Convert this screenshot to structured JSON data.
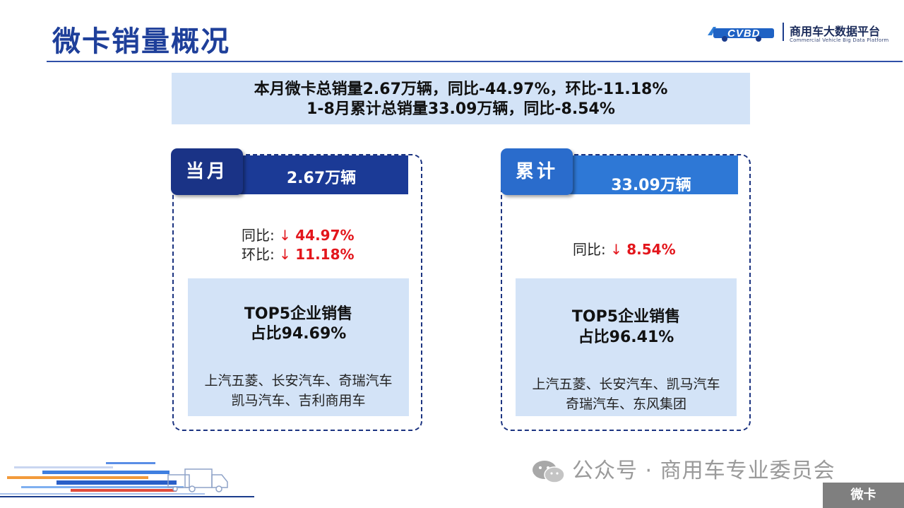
{
  "header": {
    "title": "微卡销量概况",
    "logo_cn": "商用车大数据平台",
    "logo_en": "Commercial Vehicle Big Data Platform",
    "logo_mark": "CVBD"
  },
  "summary": {
    "line1": "本月微卡总销量2.67万辆，同比-44.97%，环比-11.18%",
    "line2": "1-8月累计总销量33.09万辆，同比-8.54%"
  },
  "cards": {
    "month": {
      "tab": "当月",
      "value": "2.67万辆",
      "yoy_label": "同比: ",
      "yoy_arrow": "↓",
      "yoy_value": "44.97%",
      "mom_label": "环比: ",
      "mom_arrow": "↓",
      "mom_value": "11.18%",
      "top5_title_1": "TOP5企业销售",
      "top5_title_2": "占比94.69%",
      "companies_1": "上汽五菱、长安汽车、奇瑞汽车",
      "companies_2": "凯马汽车、吉利商用车"
    },
    "cumulative": {
      "tab": "累计",
      "value": "33.09万辆",
      "yoy_label": "同比: ",
      "yoy_arrow": "↓",
      "yoy_value": "8.54%",
      "top5_title_1": "TOP5企业销售",
      "top5_title_2": "占比96.41%",
      "companies_1": "上汽五菱、长安汽车、凯马汽车",
      "companies_2": "奇瑞汽车、东风集团"
    }
  },
  "footer": {
    "watermark": "公众号 · 商用车专业委员会",
    "corner_tag": "微卡"
  },
  "colors": {
    "title": "#1e3f9a",
    "month_band": "#1b3a96",
    "month_tab": "#1a3386",
    "cumulative_band": "#2e78d6",
    "cumulative_tab": "#2a6ccc",
    "panel_fill": "#d3e3f7",
    "decline_red": "#e3161c"
  }
}
